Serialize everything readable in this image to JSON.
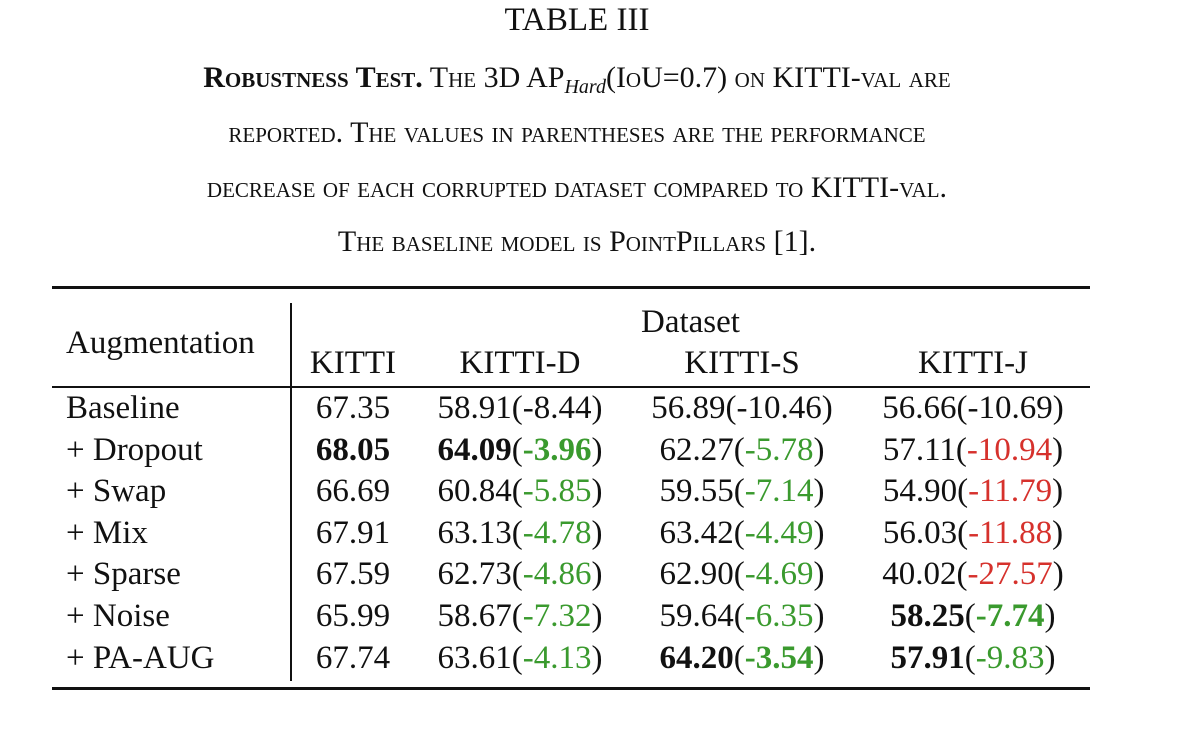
{
  "table_label": "TABLE III",
  "caption": {
    "title": "Robustness Test.",
    "line1_a": "The 3D AP",
    "line1_sub": "Hard",
    "line1_b": "(IoU=0.7) on KITTI-val are",
    "line2": "reported. The values in parentheses are the performance",
    "line3": "decrease of each corrupted dataset compared to KITTI-val.",
    "line4": "The baseline model is PointPillars [1]."
  },
  "header": {
    "augmentation": "Augmentation",
    "dataset": "Dataset",
    "columns": [
      "KITTI",
      "KITTI-D",
      "KITTI-S",
      "KITTI-J"
    ]
  },
  "colors": {
    "positive": "#3a9a2e",
    "negative": "#d6312c"
  },
  "rows": [
    {
      "label": "Baseline",
      "kitti": "67.35",
      "cells": [
        {
          "value": "58.91",
          "delta": "-8.44"
        },
        {
          "value": "56.89",
          "delta": "-10.46"
        },
        {
          "value": "56.66",
          "delta": "-10.69"
        }
      ]
    },
    {
      "label": "+ Dropout",
      "kitti": "68.05",
      "cells": [
        {
          "value": "64.09",
          "delta": "-3.96"
        },
        {
          "value": "62.27",
          "delta": "-5.78"
        },
        {
          "value": "57.11",
          "delta": "-10.94"
        }
      ]
    },
    {
      "label": "+ Swap",
      "kitti": "66.69",
      "cells": [
        {
          "value": "60.84",
          "delta": "-5.85"
        },
        {
          "value": "59.55",
          "delta": "-7.14"
        },
        {
          "value": "54.90",
          "delta": "-11.79"
        }
      ]
    },
    {
      "label": "+ Mix",
      "kitti": "67.91",
      "cells": [
        {
          "value": "63.13",
          "delta": "-4.78"
        },
        {
          "value": "63.42",
          "delta": "-4.49"
        },
        {
          "value": "56.03",
          "delta": "-11.88"
        }
      ]
    },
    {
      "label": "+ Sparse",
      "kitti": "67.59",
      "cells": [
        {
          "value": "62.73",
          "delta": "-4.86"
        },
        {
          "value": "62.90",
          "delta": "-4.69"
        },
        {
          "value": "40.02",
          "delta": "-27.57"
        }
      ]
    },
    {
      "label": "+ Noise",
      "kitti": "65.99",
      "cells": [
        {
          "value": "58.67",
          "delta": "-7.32"
        },
        {
          "value": "59.64",
          "delta": "-6.35"
        },
        {
          "value": "58.25",
          "delta": "-7.74"
        }
      ]
    },
    {
      "label": "+ PA-AUG",
      "kitti": "67.74",
      "cells": [
        {
          "value": "63.61",
          "delta": "-4.13"
        },
        {
          "value": "64.20",
          "delta": "-3.54"
        },
        {
          "value": "57.91",
          "delta": "-9.83"
        }
      ]
    }
  ]
}
